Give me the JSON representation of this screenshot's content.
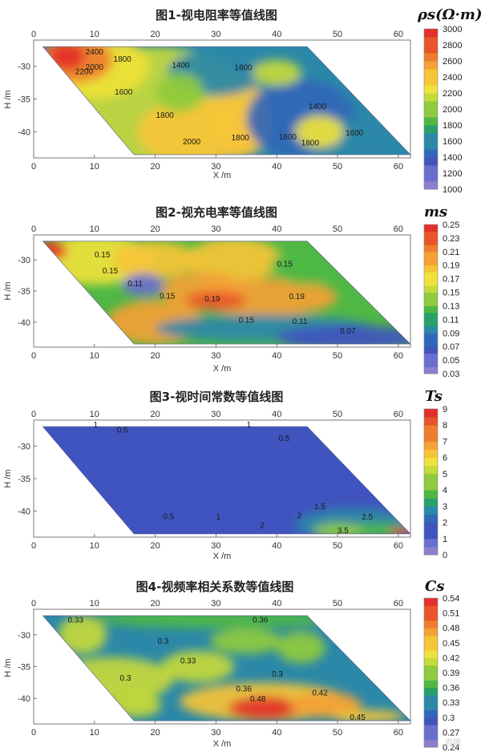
{
  "chart_data": [
    {
      "type": "heatmap",
      "title": "图1-视电阻率等值线图",
      "quantity_label": "ρs(Ω·m)",
      "xlabel": "X /m",
      "ylabel": "H /m",
      "xlim": [
        0,
        62
      ],
      "ylim": [
        -44,
        -26
      ],
      "x_ticks": [
        0,
        10,
        20,
        30,
        40,
        50,
        60
      ],
      "y_ticks": [
        -30,
        -35,
        -40
      ],
      "colorbar": [
        1000,
        1200,
        1400,
        1600,
        1800,
        2000,
        2200,
        2400,
        2600,
        2800,
        3000
      ],
      "domain_polygon": [
        [
          1.5,
          -27
        ],
        [
          45,
          -27
        ],
        [
          62,
          -43.5
        ],
        [
          16.5,
          -43.5
        ]
      ],
      "contour_labels": [
        {
          "text": "2400",
          "x": 10,
          "y": -28.2
        },
        {
          "text": "2200",
          "x": 8.3,
          "y": -31.2
        },
        {
          "text": "2000",
          "x": 10,
          "y": -30.5
        },
        {
          "text": "1800",
          "x": 14.6,
          "y": -29.3
        },
        {
          "text": "1600",
          "x": 14.8,
          "y": -34.3
        },
        {
          "text": "1400",
          "x": 24.2,
          "y": -30.2
        },
        {
          "text": "1600",
          "x": 34.5,
          "y": -30.6
        },
        {
          "text": "1800",
          "x": 21.6,
          "y": -37.9
        },
        {
          "text": "2000",
          "x": 26,
          "y": -41.9
        },
        {
          "text": "1800",
          "x": 34,
          "y": -41.3
        },
        {
          "text": "1400",
          "x": 46.7,
          "y": -36.5
        },
        {
          "text": "1600",
          "x": 41.8,
          "y": -41.2
        },
        {
          "text": "1800",
          "x": 45.5,
          "y": -42.1
        },
        {
          "text": "1600",
          "x": 52.8,
          "y": -40.6
        }
      ]
    },
    {
      "type": "heatmap",
      "title": "图2-视充电率等值线图",
      "quantity_label": "ms",
      "xlabel": "X /m",
      "ylabel": "H /m",
      "xlim": [
        0,
        62
      ],
      "ylim": [
        -44,
        -26
      ],
      "x_ticks": [
        0,
        10,
        20,
        30,
        40,
        50,
        60
      ],
      "y_ticks": [
        -30,
        -35,
        -40
      ],
      "colorbar": [
        0.03,
        0.05,
        0.07,
        0.09,
        0.11,
        0.13,
        0.15,
        0.17,
        0.19,
        0.21,
        0.23,
        0.25
      ],
      "domain_polygon": [
        [
          1.5,
          -27
        ],
        [
          45,
          -27
        ],
        [
          62,
          -43.5
        ],
        [
          16.5,
          -43.5
        ]
      ],
      "contour_labels": [
        {
          "text": "0.15",
          "x": 11.3,
          "y": -29.6
        },
        {
          "text": "0.15",
          "x": 12.6,
          "y": -32.2
        },
        {
          "text": "0.11",
          "x": 16.7,
          "y": -34.2
        },
        {
          "text": "0.15",
          "x": 22,
          "y": -36.2
        },
        {
          "text": "0.19",
          "x": 29.4,
          "y": -36.7
        },
        {
          "text": "0.19",
          "x": 43.3,
          "y": -36.3
        },
        {
          "text": "0.15",
          "x": 41.3,
          "y": -31.1
        },
        {
          "text": "0.15",
          "x": 35,
          "y": -40.1
        },
        {
          "text": "0.11",
          "x": 43.8,
          "y": -40.3
        },
        {
          "text": "0.07",
          "x": 51.7,
          "y": -41.8
        }
      ]
    },
    {
      "type": "heatmap",
      "title": "图3-视时间常数等值线图",
      "quantity_label": "Ts",
      "xlabel": "X /m",
      "ylabel": "H /m",
      "xlim": [
        0,
        62
      ],
      "ylim": [
        -44,
        -26
      ],
      "x_ticks": [
        0,
        10,
        20,
        30,
        40,
        50,
        60
      ],
      "y_ticks": [
        -30,
        -35,
        -40
      ],
      "colorbar": [
        0,
        1,
        2,
        3,
        4,
        5,
        6,
        7,
        8,
        9
      ],
      "domain_polygon": [
        [
          1.5,
          -27
        ],
        [
          45,
          -27
        ],
        [
          62,
          -43.5
        ],
        [
          16.5,
          -43.5
        ]
      ],
      "contour_labels": [
        {
          "text": "1",
          "x": 10.2,
          "y": -27.1
        },
        {
          "text": "0.5",
          "x": 14.6,
          "y": -27.9
        },
        {
          "text": "1",
          "x": 35.4,
          "y": -27.1
        },
        {
          "text": "0.5",
          "x": 41.2,
          "y": -29.2
        },
        {
          "text": "1.5",
          "x": 47.1,
          "y": -39.7
        },
        {
          "text": "2.5",
          "x": 54.9,
          "y": -41.3
        },
        {
          "text": "0.5",
          "x": 22.2,
          "y": -41.2
        },
        {
          "text": "1",
          "x": 30.4,
          "y": -41.3
        },
        {
          "text": "2",
          "x": 37.6,
          "y": -42.6
        },
        {
          "text": "2",
          "x": 43.7,
          "y": -41.1
        },
        {
          "text": "3.5",
          "x": 50.9,
          "y": -43.4
        }
      ]
    },
    {
      "type": "heatmap",
      "title": "图4-视频率相关系数等值线图",
      "quantity_label": "Cs",
      "xlabel": "X /m",
      "ylabel": "H /m",
      "xlim": [
        0,
        62
      ],
      "ylim": [
        -44,
        -26
      ],
      "x_ticks": [
        0,
        10,
        20,
        30,
        40,
        50,
        60
      ],
      "y_ticks": [
        -30,
        -35,
        -40
      ],
      "colorbar": [
        0.24,
        0.27,
        0.3,
        0.33,
        0.36,
        0.39,
        0.42,
        0.45,
        0.48,
        0.51,
        0.54
      ],
      "domain_polygon": [
        [
          1.5,
          -27
        ],
        [
          45,
          -27
        ],
        [
          62,
          -43.5
        ],
        [
          16.5,
          -43.5
        ]
      ],
      "contour_labels": [
        {
          "text": "0.33",
          "x": 6.9,
          "y": -28.1
        },
        {
          "text": "0.36",
          "x": 37.3,
          "y": -28.1
        },
        {
          "text": "0.3",
          "x": 21.3,
          "y": -31.4
        },
        {
          "text": "0.33",
          "x": 25.4,
          "y": -34.5
        },
        {
          "text": "0.3",
          "x": 40.1,
          "y": -36.6
        },
        {
          "text": "0.3",
          "x": 15.1,
          "y": -37.2
        },
        {
          "text": "0.36",
          "x": 34.6,
          "y": -38.9
        },
        {
          "text": "0.42",
          "x": 47.1,
          "y": -39.5
        },
        {
          "text": "0.48",
          "x": 36.9,
          "y": -40.5
        },
        {
          "text": "0.45",
          "x": 53.3,
          "y": -43.4
        }
      ]
    }
  ],
  "watermark": "百团"
}
